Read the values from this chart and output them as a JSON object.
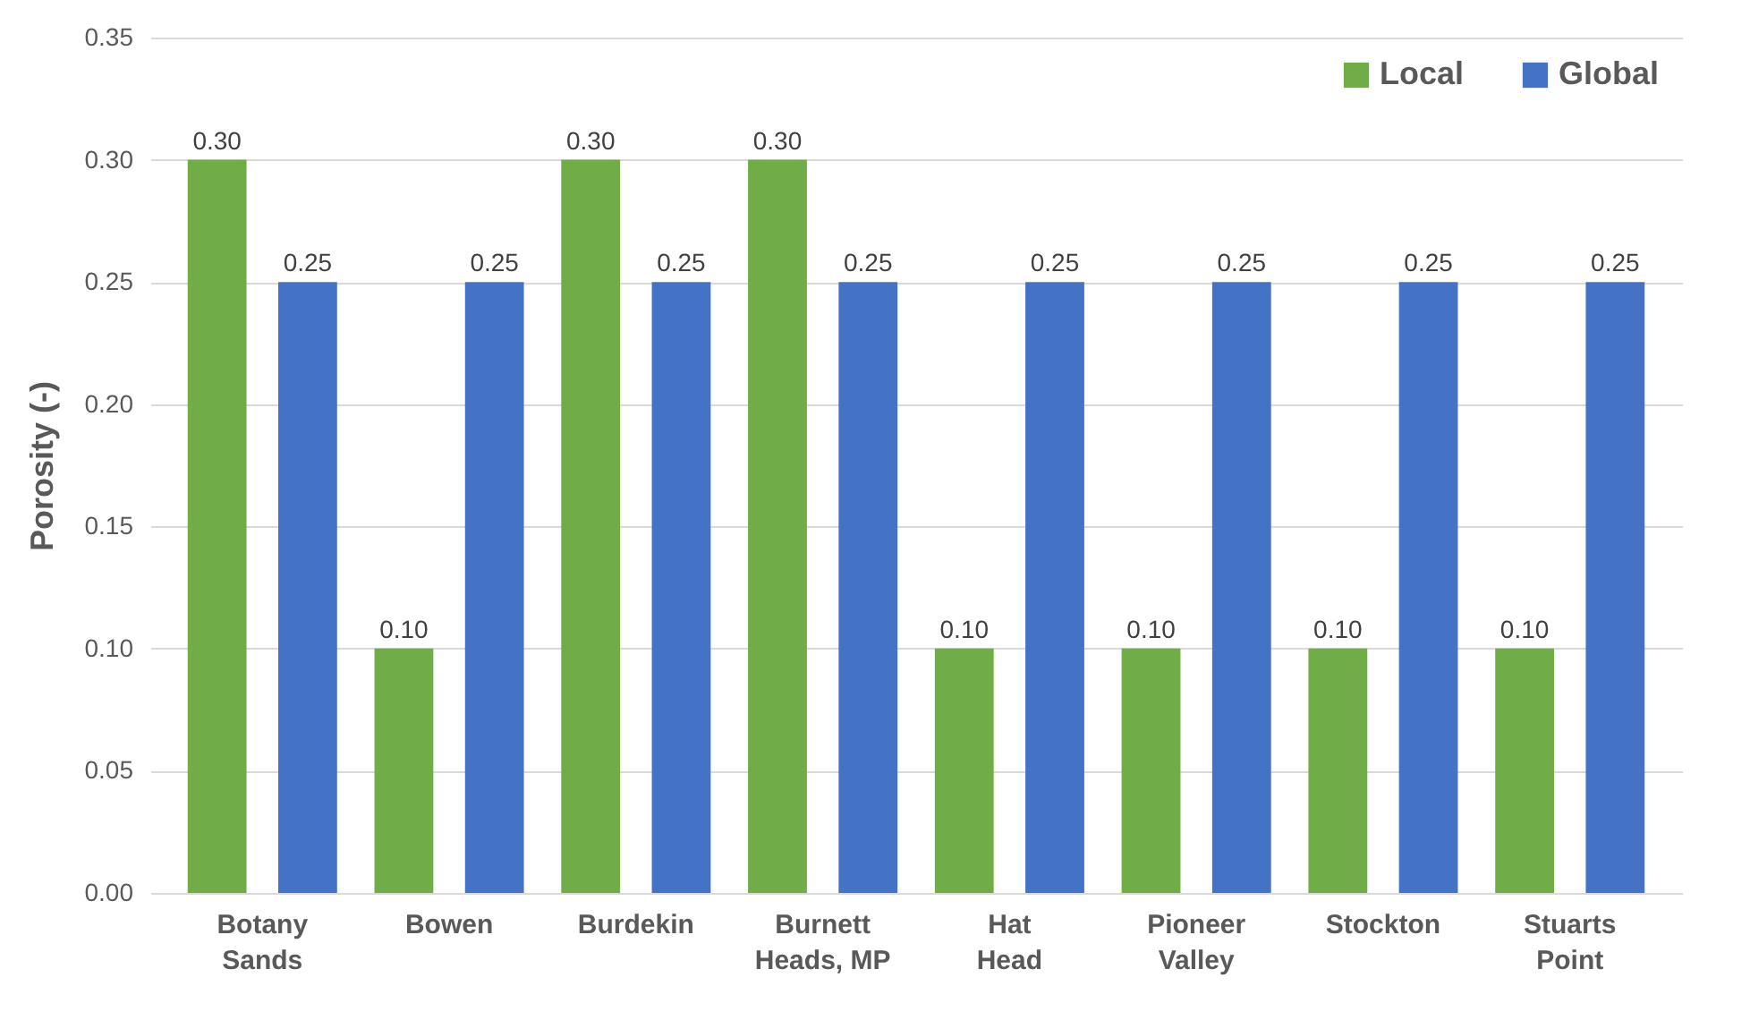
{
  "chart_data": {
    "type": "bar",
    "ylabel": "Porosity (-)",
    "categories": [
      "Botany Sands",
      "Bowen",
      "Burdekin",
      "Burnett Heads, MP",
      "Hat Head",
      "Pioneer Valley",
      "Stockton",
      "Stuarts Point"
    ],
    "series": [
      {
        "name": "Local",
        "color": "#70ad47",
        "values": [
          0.3,
          0.1,
          0.3,
          0.3,
          0.1,
          0.1,
          0.1,
          0.1
        ],
        "value_labels": [
          "0.30",
          "0.10",
          "0.30",
          "0.30",
          "0.10",
          "0.10",
          "0.10",
          "0.10"
        ]
      },
      {
        "name": "Global",
        "color": "#4472c4",
        "values": [
          0.25,
          0.25,
          0.25,
          0.25,
          0.25,
          0.25,
          0.25,
          0.25
        ],
        "value_labels": [
          "0.25",
          "0.25",
          "0.25",
          "0.25",
          "0.25",
          "0.25",
          "0.25",
          "0.25"
        ]
      }
    ],
    "ylim": [
      0,
      0.35
    ],
    "yticks": [
      {
        "value": 0,
        "label": "0.00"
      },
      {
        "value": 0.05,
        "label": "0.05"
      },
      {
        "value": 0.1,
        "label": "0.10"
      },
      {
        "value": 0.15,
        "label": "0.15"
      },
      {
        "value": 0.2,
        "label": "0.20"
      },
      {
        "value": 0.25,
        "label": "0.25"
      },
      {
        "value": 0.3,
        "label": "0.30"
      },
      {
        "value": 0.35,
        "label": "0.35"
      }
    ],
    "grid": "y",
    "legend": "top right"
  }
}
